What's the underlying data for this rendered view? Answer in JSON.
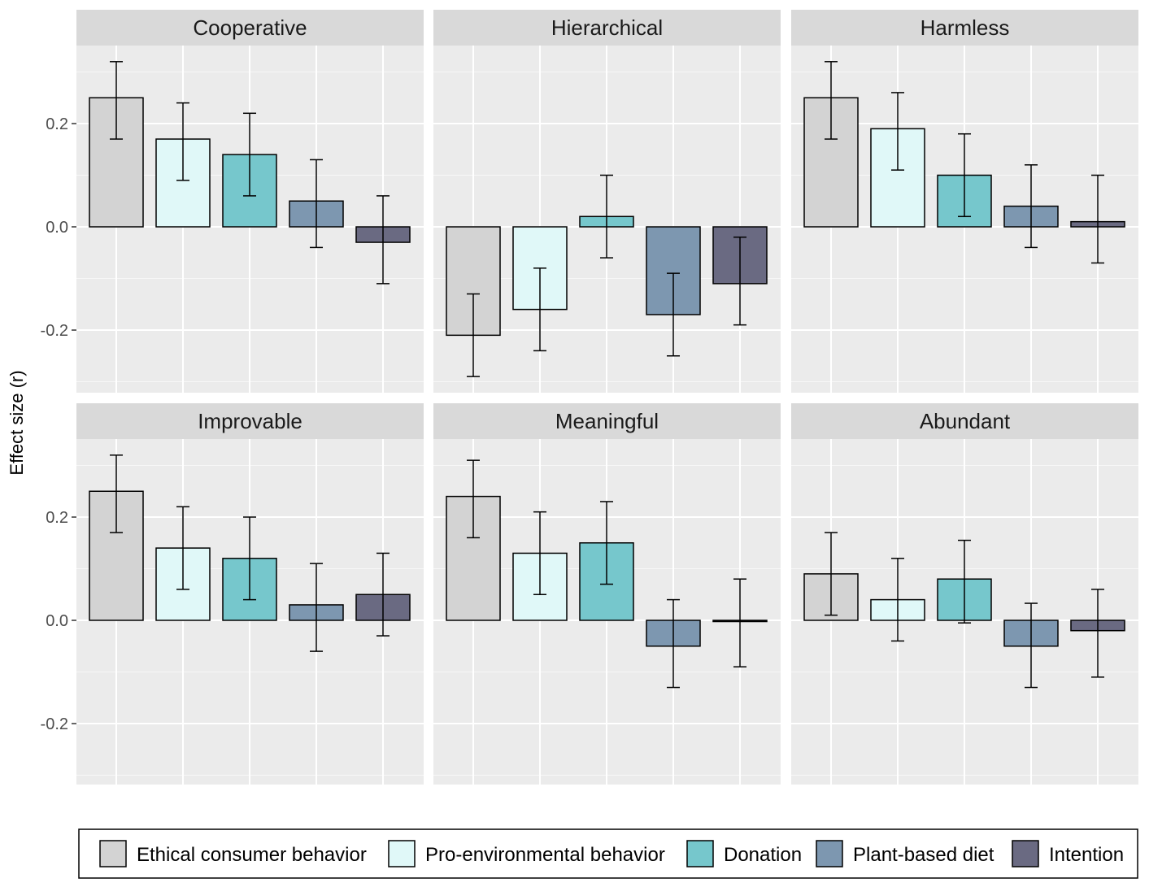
{
  "chart_data": {
    "type": "bar",
    "ylabel": "Effect size (r)",
    "ylim": [
      -0.32,
      0.32
    ],
    "yticks": [
      -0.2,
      0.0,
      0.2
    ],
    "ytick_labels": [
      "-0.2",
      "0.0",
      "0.2"
    ],
    "grid": true,
    "error_bars": true,
    "legend_position": "bottom",
    "series": [
      {
        "name": "Ethical consumer behavior",
        "color": "#d3d3d3"
      },
      {
        "name": "Pro-environmental behavior",
        "color": "#e0f8f8"
      },
      {
        "name": "Donation",
        "color": "#76c7cc"
      },
      {
        "name": "Plant-based diet",
        "color": "#7d97b0"
      },
      {
        "name": "Intention",
        "color": "#6a6a82"
      }
    ],
    "panels": [
      {
        "title": "Cooperative",
        "values": [
          0.25,
          0.17,
          0.14,
          0.05,
          -0.03
        ],
        "ci_low": [
          0.17,
          0.09,
          0.06,
          -0.04,
          -0.11
        ],
        "ci_high": [
          0.32,
          0.24,
          0.22,
          0.13,
          0.06
        ]
      },
      {
        "title": "Hierarchical",
        "values": [
          -0.21,
          -0.16,
          0.02,
          -0.17,
          -0.11
        ],
        "ci_low": [
          -0.29,
          -0.24,
          -0.06,
          -0.25,
          -0.19
        ],
        "ci_high": [
          -0.13,
          -0.08,
          0.1,
          -0.09,
          -0.02
        ]
      },
      {
        "title": "Harmless",
        "values": [
          0.25,
          0.19,
          0.1,
          0.04,
          0.01
        ],
        "ci_low": [
          0.17,
          0.11,
          0.02,
          -0.04,
          -0.07
        ],
        "ci_high": [
          0.32,
          0.26,
          0.18,
          0.12,
          0.1
        ]
      },
      {
        "title": "Improvable",
        "values": [
          0.25,
          0.14,
          0.12,
          0.03,
          0.05
        ],
        "ci_low": [
          0.17,
          0.06,
          0.04,
          -0.06,
          -0.03
        ],
        "ci_high": [
          0.32,
          0.22,
          0.2,
          0.11,
          0.13
        ]
      },
      {
        "title": "Meaningful",
        "values": [
          0.24,
          0.13,
          0.15,
          -0.05,
          0.0
        ],
        "ci_low": [
          0.16,
          0.05,
          0.07,
          -0.13,
          -0.09
        ],
        "ci_high": [
          0.31,
          0.21,
          0.23,
          0.04,
          0.08
        ]
      },
      {
        "title": "Abundant",
        "values": [
          0.09,
          0.04,
          0.08,
          -0.05,
          -0.02
        ],
        "ci_low": [
          0.01,
          -0.04,
          -0.005,
          -0.13,
          -0.11
        ],
        "ci_high": [
          0.17,
          0.12,
          0.155,
          0.033,
          0.06
        ]
      }
    ]
  }
}
